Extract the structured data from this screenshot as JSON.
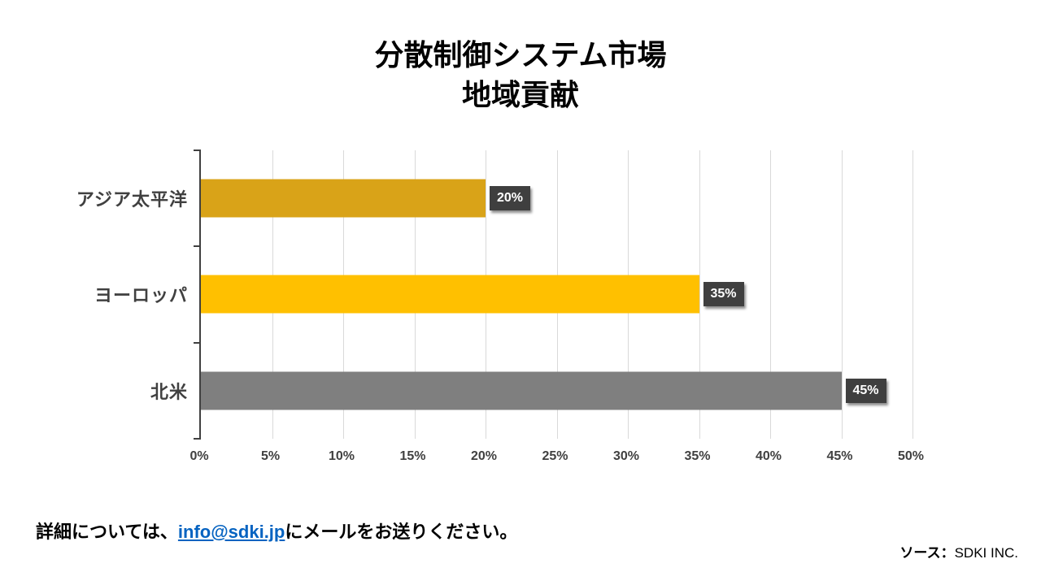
{
  "title": {
    "line1": "分散制御システム市場",
    "line2": "地域貢献"
  },
  "chart_data": {
    "type": "bar",
    "orientation": "horizontal",
    "title": "分散制御システム市場 地域貢献",
    "categories": [
      "アジア太平洋",
      "ヨーロッパ",
      "北米"
    ],
    "values": [
      20,
      35,
      45
    ],
    "value_labels": [
      "20%",
      "35%",
      "45%"
    ],
    "bar_colors": [
      "#D9A318",
      "#FFC000",
      "#7F7F7F"
    ],
    "xlim": [
      0,
      50
    ],
    "x_ticks": [
      "0%",
      "5%",
      "10%",
      "15%",
      "20%",
      "25%",
      "30%",
      "35%",
      "40%",
      "45%",
      "50%"
    ],
    "grid": true,
    "gridline_color": "#D9D9D9",
    "axis_color": "#404040",
    "data_label_bg": "#3F3F3F",
    "data_label_color": "#FFFFFF",
    "legend": "none"
  },
  "footer": {
    "note_prefix": "詳細については、",
    "email": "info@sdki.jp",
    "note_suffix": "にメールをお送りください。",
    "source_label": "ソース：",
    "source_value": "SDKI INC."
  }
}
